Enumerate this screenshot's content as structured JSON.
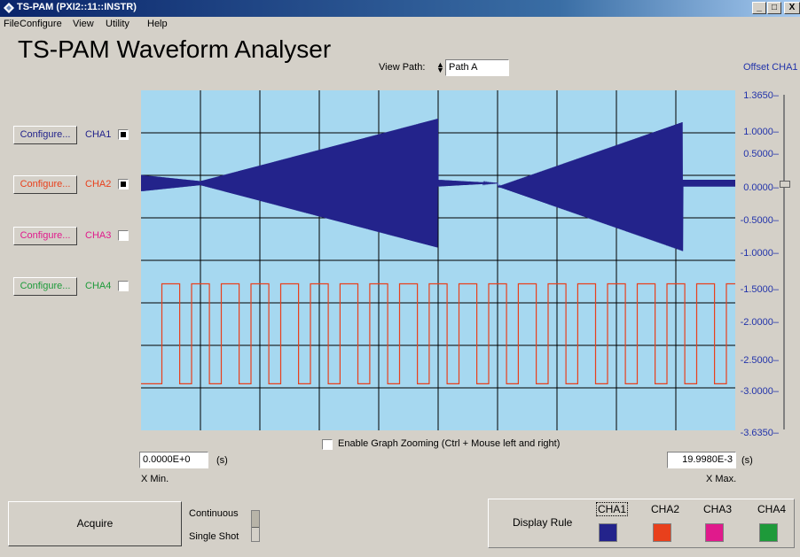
{
  "window": {
    "title": "TS-PAM (PXI2::11::INSTR)",
    "min": "_",
    "max": "□",
    "close": "X"
  },
  "menu": [
    "File",
    "Configure",
    "View",
    "Utility",
    "Help"
  ],
  "app": {
    "title": "TS-PAM Waveform Analyser"
  },
  "view_path": {
    "label": "View Path:",
    "value": "Path A"
  },
  "offset_label": "Offset CHA1",
  "channels": [
    {
      "configure": "Configure...",
      "label": "CHA1",
      "checked": true,
      "color": "#23238b"
    },
    {
      "configure": "Configure...",
      "label": "CHA2",
      "checked": true,
      "color": "#e8401c"
    },
    {
      "configure": "Configure...",
      "label": "CHA3",
      "checked": false,
      "color": "#e01a8c"
    },
    {
      "configure": "Configure...",
      "label": "CHA4",
      "checked": false,
      "color": "#1e9a3a"
    }
  ],
  "yaxis": {
    "ticks": [
      "1.3650",
      "1.0000",
      "0.5000",
      "0.0000",
      "-0.5000",
      "-1.0000",
      "-1.5000",
      "-2.0000",
      "-2.5000",
      "-3.0000",
      "-3.6350"
    ],
    "max": 1.365,
    "min": -3.635,
    "slider_value": 0.0
  },
  "graph": {
    "background": "#a6d8f0",
    "grid_color": "#000000"
  },
  "zoom_label": "Enable Graph Zooming (Ctrl + Mouse left and right)",
  "xaxis": {
    "min_value": "0.0000E+0",
    "max_value": "19.9980E-3",
    "unit": "(s)",
    "min_label": "X Min.",
    "max_label": "X Max."
  },
  "acquire": "Acquire",
  "mode": {
    "continuous": "Continuous",
    "single": "Single Shot",
    "selected": "Continuous"
  },
  "display": {
    "label": "Display Rule",
    "channels": [
      "CHA1",
      "CHA2",
      "CHA3",
      "CHA4"
    ],
    "selected": "CHA1"
  },
  "icons": [
    "rs-logo-icon",
    "minimize-icon",
    "maximize-icon",
    "close-icon",
    "spinner-icon"
  ]
}
